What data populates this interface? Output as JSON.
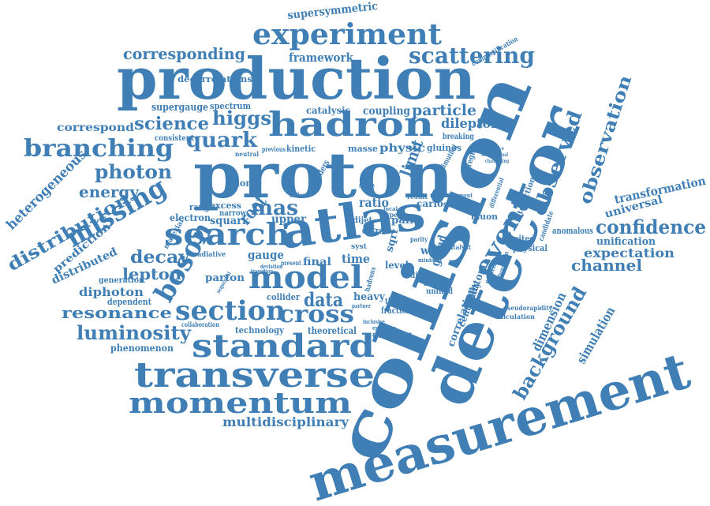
{
  "colors": {
    "word": "#3f7fb5",
    "background": "#ffffff"
  },
  "words": {
    "supersymmetric": "supersymmetric",
    "experiment": "experiment",
    "corresponding": "corresponding",
    "framework": "framework",
    "scattering": "scattering",
    "decorrelations": "decorrelations",
    "production": "production",
    "supergauge": "supergauge",
    "spectrum": "spectrum",
    "catalysis": "catalysis",
    "coupling": "coupling",
    "particle": "particle",
    "correspond": "correspond",
    "science": "science",
    "higgs": "higgs",
    "hadron": "hadron",
    "dilepton": "dilepton",
    "consistent": "consistent",
    "branching": "branching",
    "quark": "quark",
    "previous": "previous",
    "kinetic": "kinetic",
    "masse": "masse",
    "physic": "physic",
    "gluinos": "gluinos",
    "proton": "proton",
    "heterogeneous": "heterogeneous",
    "photon": "photon",
    "limit": "limit",
    "energy": "energy",
    "missing": "missing",
    "distribution": "distribution",
    "monte": "monte",
    "mas": "mas",
    "ratio": "ratio",
    "carlo": "carlo",
    "search": "search",
    "atlas": "atlas",
    "excess": "excess",
    "narrow": "narrow",
    "electron": "electron",
    "squark": "squark",
    "root": "root",
    "upper": "upper",
    "dijet": "dijet",
    "prediction": "prediction",
    "distributed": "distributed",
    "decay": "decay",
    "gauge": "gauge",
    "time": "time",
    "final": "final",
    "lepton": "lepton",
    "generation": "generation",
    "boson": "boson",
    "parton": "parton",
    "model": "model",
    "diphoton": "diphoton",
    "dependent": "dependent",
    "section": "section",
    "data": "data",
    "collider": "collider",
    "resonance": "resonance",
    "cross": "cross",
    "heavy": "heavy",
    "technology": "technology",
    "theoretical": "theoretical",
    "theory": "theory",
    "fraction": "fraction",
    "luminosity": "luminosity",
    "decaying": "decaying",
    "phenomenon": "phenomenon",
    "standard": "standard",
    "transverse": "transverse",
    "momentum": "momentum",
    "multidisciplinary": "multidisciplinary",
    "collision": "collision",
    "event": "event",
    "observed": "observed",
    "observation": "observation",
    "detector": "detector",
    "measurement": "measurement",
    "transformation": "transformation",
    "universal": "universal",
    "confidence": "confidence",
    "anomalous": "anomalous",
    "unification": "unification",
    "expectation": "expectation",
    "excited": "excited",
    "physical": "physical",
    "channel": "channel",
    "interaction": "interaction",
    "region": "region",
    "grand": "grand",
    "level": "level",
    "lattice": "lattice",
    "unified": "unified",
    "dijets": "dijets",
    "muon": "muon",
    "scalar": "scalar",
    "result": "result",
    "pair": "pair",
    "extra": "extra",
    "jet": "jet",
    "syst": "syst",
    "warp": "warp",
    "sqrt": "sqrt",
    "bottom": "bottom",
    "correlation": "correlation",
    "centrality": "centrality",
    "background": "background",
    "dimension": "dimension",
    "simulation": "simulation",
    "calculation": "calculation",
    "pseudorapidity": "pseudorapidity",
    "breaking": "breaking",
    "significance": "significance",
    "nonuniversal": "nonuniversal",
    "challenging": "challenging",
    "azimuthal": "azimuthal",
    "differential": "differential",
    "candidate": "candidate",
    "endcap": "endcap",
    "function": "function",
    "compactification": "compactification",
    "colliders": "colliders",
    "material": "material",
    "radiative": "radiative",
    "collaboration": "collaboration",
    "sequential": "sequential",
    "transition": "transition",
    "deviation": "deviation",
    "present": "present",
    "neutral": "neutral",
    "state": "state",
    "range": "range",
    "hadrons": "hadrons",
    "partner": "partner",
    "inclusive": "inclusive",
    "exclusion": "exclusion",
    "catalyst": "catalyst",
    "minimal": "minimal",
    "type": "type",
    "parity": "parity",
    "local": "local",
    "order": "order",
    "agreement": "agreement"
  }
}
